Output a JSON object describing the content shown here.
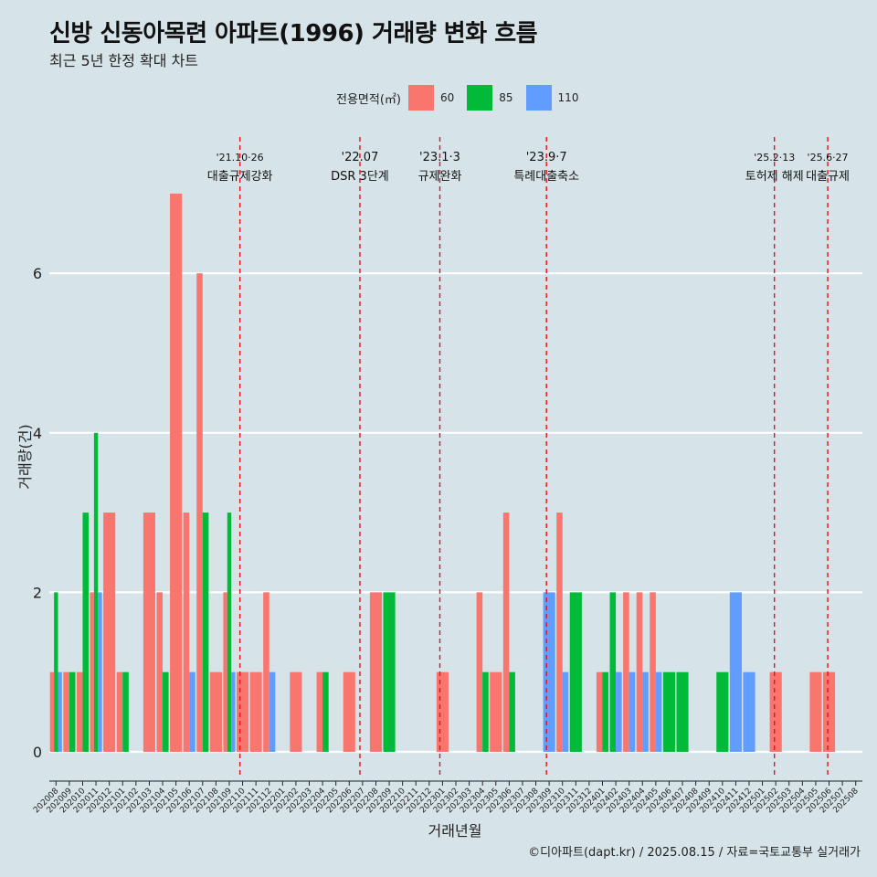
{
  "header": {
    "title": "신방 신동아목련 아파트(1996) 거래량 변화 흐름",
    "subtitle": "최근 5년 한정 확대 차트"
  },
  "legend": {
    "title": "전용면적(㎡)",
    "items": [
      {
        "label": "60",
        "color": "#f8766d"
      },
      {
        "label": "85",
        "color": "#00ba38"
      },
      {
        "label": "110",
        "color": "#619cff"
      }
    ]
  },
  "caption": "©디아파트(dapt.kr) / 2025.08.15 / 자료=국토교통부 실거래가",
  "chart_data": {
    "type": "bar",
    "xlabel": "거래년월",
    "ylabel": "거래량(건)",
    "ylim": [
      -0.3,
      7.8
    ],
    "yticks": [
      0,
      2,
      4,
      6
    ],
    "grid": true,
    "legend_position": "top",
    "categories": [
      "202008",
      "202009",
      "202010",
      "202011",
      "202012",
      "202101",
      "202102",
      "202103",
      "202104",
      "202105",
      "202106",
      "202107",
      "202108",
      "202109",
      "202110",
      "202111",
      "202112",
      "202201",
      "202202",
      "202203",
      "202204",
      "202205",
      "202206",
      "202207",
      "202208",
      "202209",
      "202210",
      "202211",
      "202212",
      "202301",
      "202302",
      "202303",
      "202304",
      "202305",
      "202306",
      "202307",
      "202308",
      "202309",
      "202310",
      "202311",
      "202312",
      "202401",
      "202402",
      "202403",
      "202404",
      "202405",
      "202406",
      "202407",
      "202408",
      "202409",
      "202410",
      "202411",
      "202412",
      "202501",
      "202502",
      "202503",
      "202504",
      "202505",
      "202506",
      "202507",
      "202508"
    ],
    "series": [
      {
        "name": "60",
        "color": "#f8766d",
        "values": [
          1,
          1,
          1,
          2,
          3,
          1,
          0,
          3,
          2,
          7,
          3,
          6,
          1,
          2,
          1,
          1,
          2,
          0,
          1,
          0,
          1,
          0,
          1,
          0,
          2,
          0,
          0,
          0,
          0,
          1,
          0,
          0,
          2,
          1,
          3,
          0,
          0,
          0,
          3,
          0,
          0,
          1,
          0,
          2,
          2,
          2,
          0,
          0,
          0,
          0,
          0,
          0,
          0,
          0,
          1,
          0,
          0,
          1,
          1,
          0,
          0
        ]
      },
      {
        "name": "85",
        "color": "#00ba38",
        "values": [
          2,
          1,
          3,
          4,
          0,
          1,
          0,
          0,
          1,
          0,
          0,
          3,
          0,
          3,
          0,
          0,
          0,
          0,
          0,
          0,
          1,
          0,
          0,
          0,
          0,
          2,
          0,
          0,
          0,
          0,
          0,
          0,
          1,
          0,
          1,
          0,
          0,
          0,
          0,
          2,
          0,
          1,
          2,
          0,
          0,
          0,
          1,
          1,
          0,
          0,
          1,
          0,
          0,
          0,
          0,
          0,
          0,
          0,
          0,
          0,
          0
        ]
      },
      {
        "name": "110",
        "color": "#619cff",
        "values": [
          1,
          0,
          0,
          2,
          0,
          0,
          0,
          0,
          0,
          0,
          1,
          0,
          0,
          1,
          0,
          0,
          1,
          0,
          0,
          0,
          0,
          0,
          0,
          0,
          0,
          0,
          0,
          0,
          0,
          0,
          0,
          0,
          0,
          0,
          0,
          0,
          0,
          2,
          1,
          0,
          0,
          0,
          1,
          1,
          1,
          1,
          0,
          0,
          0,
          0,
          0,
          2,
          1,
          0,
          0,
          0,
          0,
          0,
          0,
          0,
          0
        ]
      }
    ],
    "annotations": [
      {
        "date": "'21.10·26",
        "label": "대출규제강화",
        "index": 14.3
      },
      {
        "date": "'22.07",
        "label": "DSR 3단계",
        "index": 23.3
      },
      {
        "date": "'23.1·3",
        "label": "규제완화",
        "index": 29.3
      },
      {
        "date": "'23.9·7",
        "label": "특례대출축소",
        "index": 37.3
      },
      {
        "date": "'25.2·13",
        "label": "토허제 해제",
        "index": 54.4
      },
      {
        "date": "'25.6·27",
        "label": "대출규제",
        "index": 58.4
      }
    ]
  }
}
